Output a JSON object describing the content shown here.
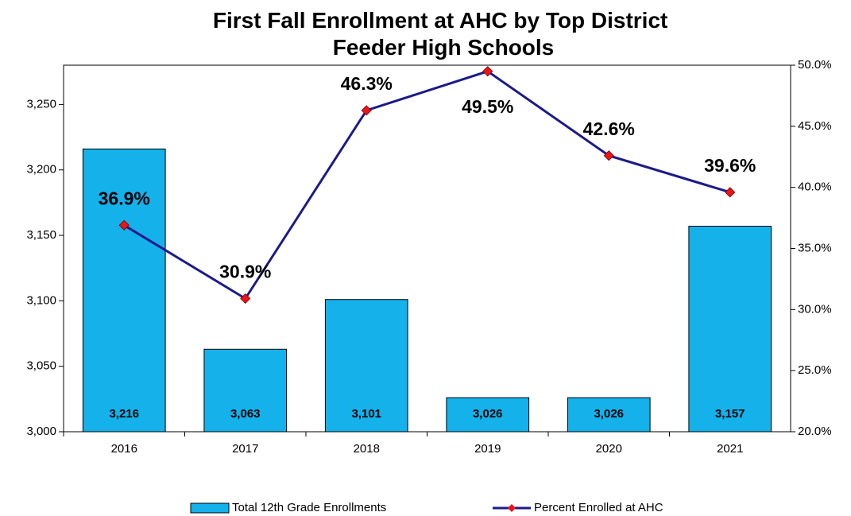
{
  "chart_data": {
    "type": "bar-line",
    "title": "First Fall Enrollment at AHC by Top District Feeder High Schools",
    "categories": [
      "2016",
      "2017",
      "2018",
      "2019",
      "2020",
      "2021"
    ],
    "series": [
      {
        "name": "Total 12th Grade Enrollments",
        "type": "bar",
        "color": "#14b1ea",
        "axis": "y",
        "values": [
          3216,
          3063,
          3101,
          3026,
          3026,
          3157
        ],
        "value_labels": [
          "3,216",
          "3,063",
          "3,101",
          "3,026",
          "3,026",
          "3,157"
        ]
      },
      {
        "name": "Percent Enrolled at AHC",
        "type": "line",
        "color": "#1c1a8a",
        "marker_color": "#e8151b",
        "axis": "y2",
        "values": [
          36.9,
          30.9,
          46.3,
          49.5,
          42.6,
          39.6
        ],
        "value_labels": [
          "36.9%",
          "30.9%",
          "46.3%",
          "49.5%",
          "42.6%",
          "39.6%"
        ]
      }
    ],
    "ylim": [
      3000,
      3280
    ],
    "yticks": [
      {
        "value": 3000,
        "label": "3,000"
      },
      {
        "value": 3050,
        "label": "3,050"
      },
      {
        "value": 3100,
        "label": "3,100"
      },
      {
        "value": 3150,
        "label": "3,150"
      },
      {
        "value": 3200,
        "label": "3,200"
      },
      {
        "value": 3250,
        "label": "3,250"
      }
    ],
    "y2lim": [
      20,
      50
    ],
    "y2ticks": [
      {
        "value": 20,
        "label": "20.0%"
      },
      {
        "value": 25,
        "label": "25.0%"
      },
      {
        "value": 30,
        "label": "30.0%"
      },
      {
        "value": 35,
        "label": "35.0%"
      },
      {
        "value": 40,
        "label": "40.0%"
      },
      {
        "value": 45,
        "label": "45.0%"
      },
      {
        "value": 50,
        "label": "50.0%"
      }
    ],
    "legend": "bottom"
  }
}
